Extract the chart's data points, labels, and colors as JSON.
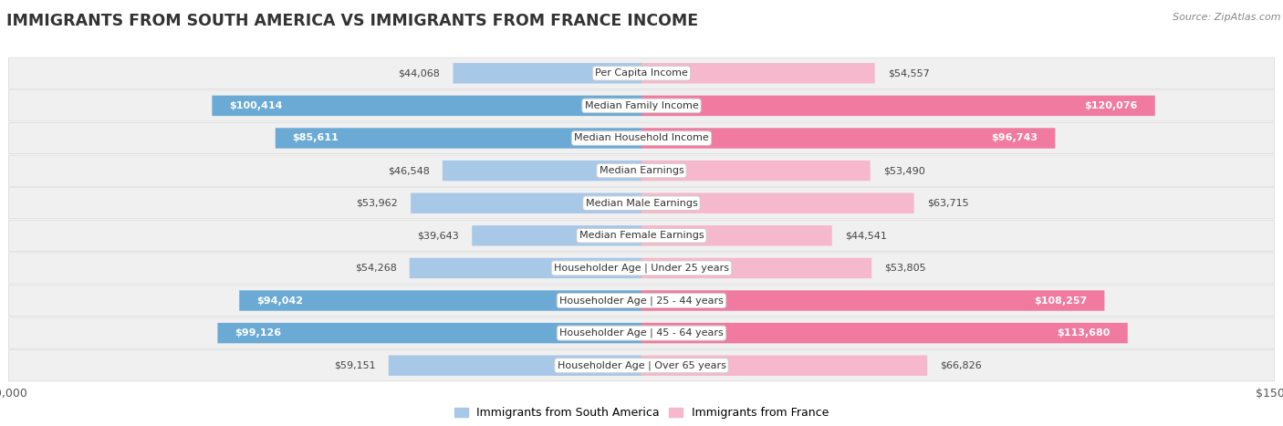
{
  "title": "IMMIGRANTS FROM SOUTH AMERICA VS IMMIGRANTS FROM FRANCE INCOME",
  "source": "Source: ZipAtlas.com",
  "categories": [
    "Per Capita Income",
    "Median Family Income",
    "Median Household Income",
    "Median Earnings",
    "Median Male Earnings",
    "Median Female Earnings",
    "Householder Age | Under 25 years",
    "Householder Age | 25 - 44 years",
    "Householder Age | 45 - 64 years",
    "Householder Age | Over 65 years"
  ],
  "south_america_values": [
    44068,
    100414,
    85611,
    46548,
    53962,
    39643,
    54268,
    94042,
    99126,
    59151
  ],
  "france_values": [
    54557,
    120076,
    96743,
    53490,
    63715,
    44541,
    53805,
    108257,
    113680,
    66826
  ],
  "south_america_labels": [
    "$44,068",
    "$100,414",
    "$85,611",
    "$46,548",
    "$53,962",
    "$39,643",
    "$54,268",
    "$94,042",
    "$99,126",
    "$59,151"
  ],
  "france_labels": [
    "$54,557",
    "$120,076",
    "$96,743",
    "$53,490",
    "$63,715",
    "$44,541",
    "$53,805",
    "$108,257",
    "$113,680",
    "$66,826"
  ],
  "sa_inside_threshold": 75000,
  "fr_inside_threshold": 75000,
  "max_value": 150000,
  "south_america_color_light": "#a8c8e8",
  "south_america_color_dark": "#6aaad4",
  "france_color_light": "#f5b8cc",
  "france_color_dark": "#f07aa0",
  "row_bg_color": "#f0f0f0",
  "row_border_color": "#d8d8d8",
  "label_box_color": "#ffffff",
  "legend_sa": "Immigrants from South America",
  "legend_fr": "Immigrants from France",
  "title_fontsize": 12.5,
  "source_fontsize": 8,
  "axis_label_fontsize": 9,
  "bar_label_fontsize": 8,
  "cat_label_fontsize": 8
}
